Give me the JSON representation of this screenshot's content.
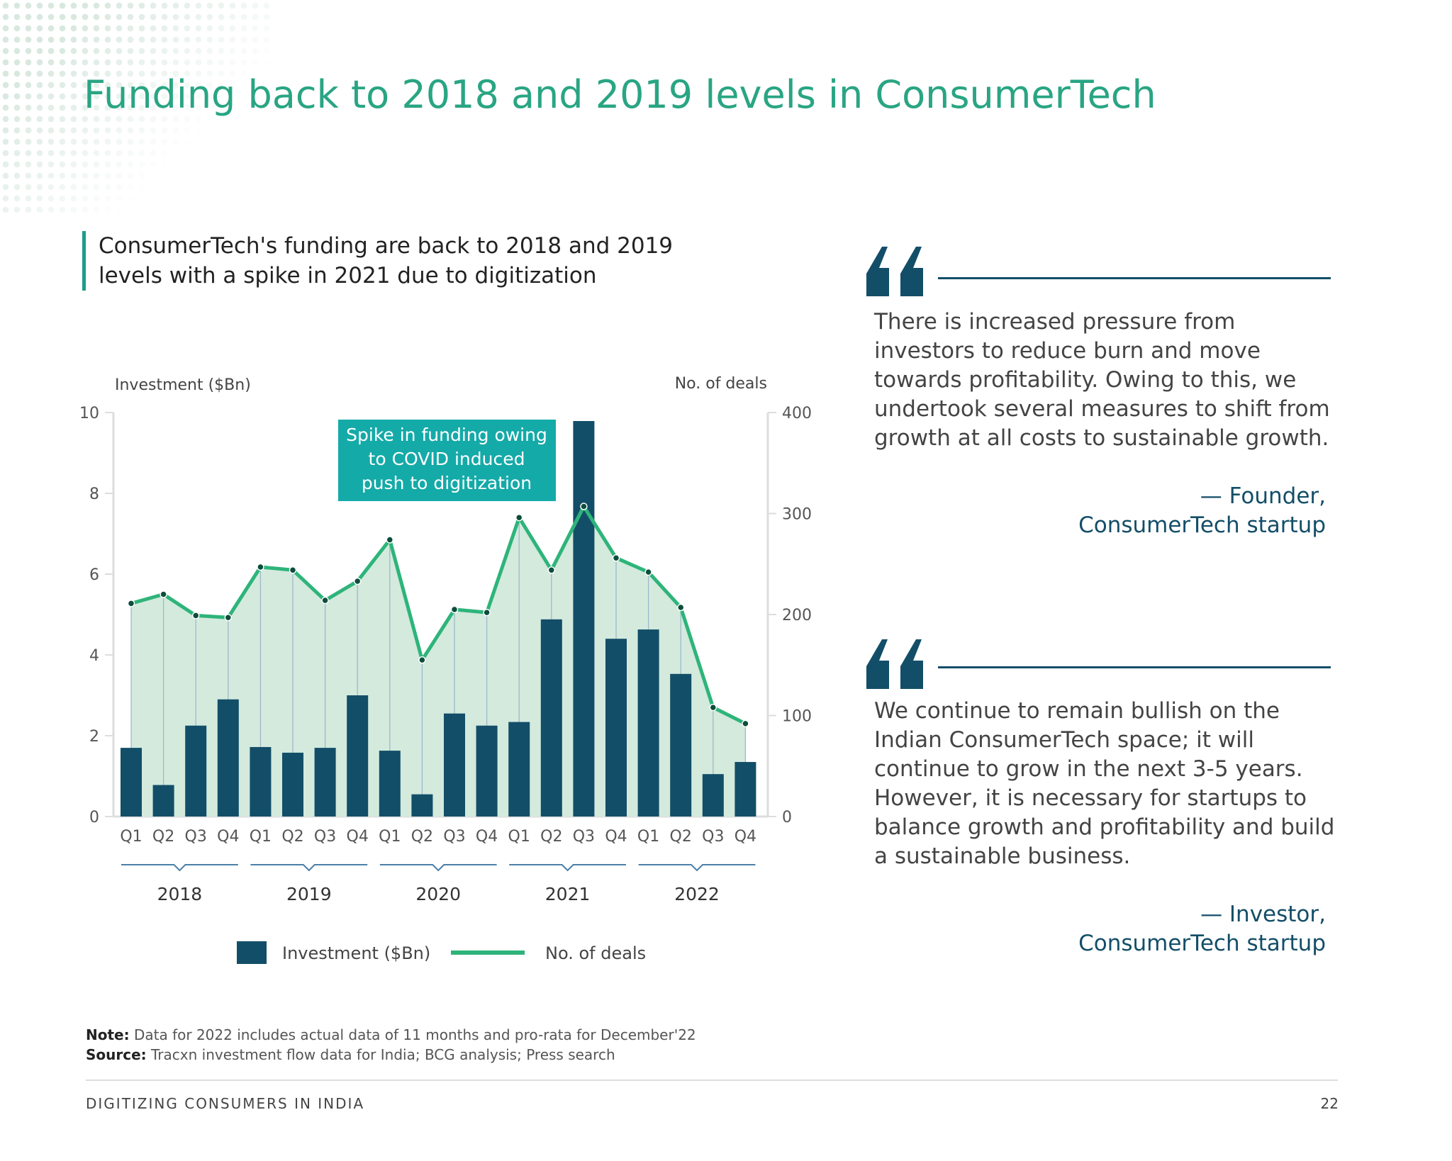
{
  "title": "Funding back to 2018 and 2019 levels in ConsumerTech",
  "subtitle": "ConsumerTech's funding are back to 2018 and 2019 levels with a spike in 2021 due to digitization",
  "chart_data": {
    "type": "bar+line",
    "categories": [
      "Q1",
      "Q2",
      "Q3",
      "Q4",
      "Q1",
      "Q2",
      "Q3",
      "Q4",
      "Q1",
      "Q2",
      "Q3",
      "Q4",
      "Q1",
      "Q2",
      "Q3",
      "Q4",
      "Q1",
      "Q2",
      "Q3",
      "Q4"
    ],
    "years": [
      "2018",
      "2019",
      "2020",
      "2021",
      "2022"
    ],
    "ylabel_left": "Investment ($Bn)",
    "ylabel_right": "No. of deals",
    "ylim_left": [
      0,
      10
    ],
    "yticks_left": [
      "0",
      "2",
      "4",
      "6",
      "8",
      "10"
    ],
    "ylim_right": [
      0,
      400
    ],
    "yticks_right": [
      "0",
      "100",
      "200",
      "300",
      "400"
    ],
    "series": [
      {
        "name": "Investment ($Bn)",
        "type": "bar",
        "color": "#134e68",
        "values": [
          1.7,
          0.78,
          2.25,
          2.9,
          1.72,
          1.58,
          1.7,
          3.0,
          1.63,
          0.55,
          2.55,
          2.25,
          2.34,
          4.88,
          9.8,
          4.4,
          4.63,
          3.53,
          1.05,
          1.35
        ]
      },
      {
        "name": "No. of deals",
        "type": "line",
        "axis": "right",
        "color": "#2eb47a",
        "values": [
          211,
          220,
          199,
          197,
          247,
          244,
          214,
          233,
          274,
          155,
          205,
          202,
          296,
          244,
          307,
          256,
          242,
          207,
          108,
          92
        ]
      }
    ],
    "annotation": "Spike in funding owing to COVID induced push to digitization",
    "legend": "bottom"
  },
  "quotes": [
    {
      "text": "There is increased pressure from investors to reduce burn and move towards profitability. Owing to this, we undertook several measures to shift from growth at all costs to sustainable growth.",
      "attr1": "— Founder,",
      "attr2": "ConsumerTech startup"
    },
    {
      "text": "We continue to remain bullish on the Indian ConsumerTech space; it will continue to grow in the next 3-5 years. However, it is necessary for startups to balance growth and profitability and build a sustainable business.",
      "attr1": "— Investor,",
      "attr2": "ConsumerTech startup"
    }
  ],
  "note_label": "Note:",
  "note": "Data for 2022 includes actual data of 11 months and pro-rata for December'22",
  "source_label": "Source:",
  "source": "Tracxn investment flow data for India; BCG analysis; Press search",
  "footer": "DIGITIZING CONSUMERS IN INDIA",
  "page_number": "22"
}
